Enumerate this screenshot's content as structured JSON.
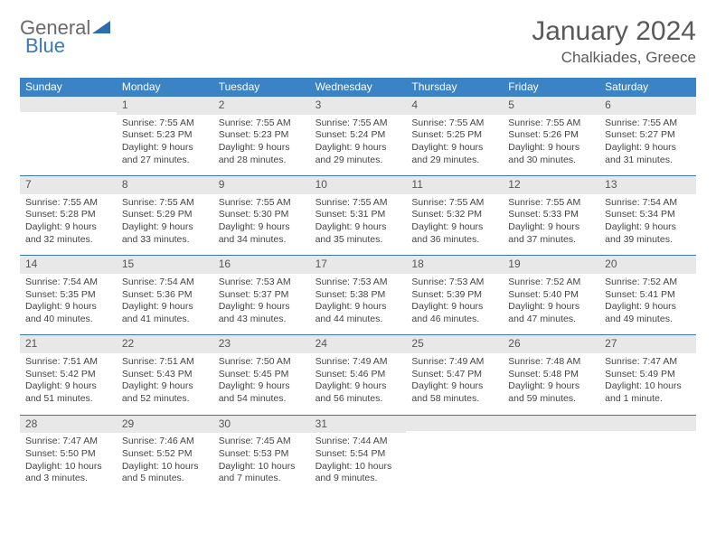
{
  "logo": {
    "text1": "General",
    "text2": "Blue"
  },
  "title": "January 2024",
  "location": "Chalkiades, Greece",
  "day_headers": [
    "Sunday",
    "Monday",
    "Tuesday",
    "Wednesday",
    "Thursday",
    "Friday",
    "Saturday"
  ],
  "colors": {
    "header_bg": "#3a83c4",
    "daynum_bg": "#e8e8e8",
    "daynum_border": "#3a7ab8",
    "text": "#444444"
  },
  "weeks": [
    [
      {
        "num": "",
        "sunrise": "",
        "sunset": "",
        "daylight": ""
      },
      {
        "num": "1",
        "sunrise": "Sunrise: 7:55 AM",
        "sunset": "Sunset: 5:23 PM",
        "daylight": "Daylight: 9 hours and 27 minutes."
      },
      {
        "num": "2",
        "sunrise": "Sunrise: 7:55 AM",
        "sunset": "Sunset: 5:23 PM",
        "daylight": "Daylight: 9 hours and 28 minutes."
      },
      {
        "num": "3",
        "sunrise": "Sunrise: 7:55 AM",
        "sunset": "Sunset: 5:24 PM",
        "daylight": "Daylight: 9 hours and 29 minutes."
      },
      {
        "num": "4",
        "sunrise": "Sunrise: 7:55 AM",
        "sunset": "Sunset: 5:25 PM",
        "daylight": "Daylight: 9 hours and 29 minutes."
      },
      {
        "num": "5",
        "sunrise": "Sunrise: 7:55 AM",
        "sunset": "Sunset: 5:26 PM",
        "daylight": "Daylight: 9 hours and 30 minutes."
      },
      {
        "num": "6",
        "sunrise": "Sunrise: 7:55 AM",
        "sunset": "Sunset: 5:27 PM",
        "daylight": "Daylight: 9 hours and 31 minutes."
      }
    ],
    [
      {
        "num": "7",
        "sunrise": "Sunrise: 7:55 AM",
        "sunset": "Sunset: 5:28 PM",
        "daylight": "Daylight: 9 hours and 32 minutes."
      },
      {
        "num": "8",
        "sunrise": "Sunrise: 7:55 AM",
        "sunset": "Sunset: 5:29 PM",
        "daylight": "Daylight: 9 hours and 33 minutes."
      },
      {
        "num": "9",
        "sunrise": "Sunrise: 7:55 AM",
        "sunset": "Sunset: 5:30 PM",
        "daylight": "Daylight: 9 hours and 34 minutes."
      },
      {
        "num": "10",
        "sunrise": "Sunrise: 7:55 AM",
        "sunset": "Sunset: 5:31 PM",
        "daylight": "Daylight: 9 hours and 35 minutes."
      },
      {
        "num": "11",
        "sunrise": "Sunrise: 7:55 AM",
        "sunset": "Sunset: 5:32 PM",
        "daylight": "Daylight: 9 hours and 36 minutes."
      },
      {
        "num": "12",
        "sunrise": "Sunrise: 7:55 AM",
        "sunset": "Sunset: 5:33 PM",
        "daylight": "Daylight: 9 hours and 37 minutes."
      },
      {
        "num": "13",
        "sunrise": "Sunrise: 7:54 AM",
        "sunset": "Sunset: 5:34 PM",
        "daylight": "Daylight: 9 hours and 39 minutes."
      }
    ],
    [
      {
        "num": "14",
        "sunrise": "Sunrise: 7:54 AM",
        "sunset": "Sunset: 5:35 PM",
        "daylight": "Daylight: 9 hours and 40 minutes."
      },
      {
        "num": "15",
        "sunrise": "Sunrise: 7:54 AM",
        "sunset": "Sunset: 5:36 PM",
        "daylight": "Daylight: 9 hours and 41 minutes."
      },
      {
        "num": "16",
        "sunrise": "Sunrise: 7:53 AM",
        "sunset": "Sunset: 5:37 PM",
        "daylight": "Daylight: 9 hours and 43 minutes."
      },
      {
        "num": "17",
        "sunrise": "Sunrise: 7:53 AM",
        "sunset": "Sunset: 5:38 PM",
        "daylight": "Daylight: 9 hours and 44 minutes."
      },
      {
        "num": "18",
        "sunrise": "Sunrise: 7:53 AM",
        "sunset": "Sunset: 5:39 PM",
        "daylight": "Daylight: 9 hours and 46 minutes."
      },
      {
        "num": "19",
        "sunrise": "Sunrise: 7:52 AM",
        "sunset": "Sunset: 5:40 PM",
        "daylight": "Daylight: 9 hours and 47 minutes."
      },
      {
        "num": "20",
        "sunrise": "Sunrise: 7:52 AM",
        "sunset": "Sunset: 5:41 PM",
        "daylight": "Daylight: 9 hours and 49 minutes."
      }
    ],
    [
      {
        "num": "21",
        "sunrise": "Sunrise: 7:51 AM",
        "sunset": "Sunset: 5:42 PM",
        "daylight": "Daylight: 9 hours and 51 minutes."
      },
      {
        "num": "22",
        "sunrise": "Sunrise: 7:51 AM",
        "sunset": "Sunset: 5:43 PM",
        "daylight": "Daylight: 9 hours and 52 minutes."
      },
      {
        "num": "23",
        "sunrise": "Sunrise: 7:50 AM",
        "sunset": "Sunset: 5:45 PM",
        "daylight": "Daylight: 9 hours and 54 minutes."
      },
      {
        "num": "24",
        "sunrise": "Sunrise: 7:49 AM",
        "sunset": "Sunset: 5:46 PM",
        "daylight": "Daylight: 9 hours and 56 minutes."
      },
      {
        "num": "25",
        "sunrise": "Sunrise: 7:49 AM",
        "sunset": "Sunset: 5:47 PM",
        "daylight": "Daylight: 9 hours and 58 minutes."
      },
      {
        "num": "26",
        "sunrise": "Sunrise: 7:48 AM",
        "sunset": "Sunset: 5:48 PM",
        "daylight": "Daylight: 9 hours and 59 minutes."
      },
      {
        "num": "27",
        "sunrise": "Sunrise: 7:47 AM",
        "sunset": "Sunset: 5:49 PM",
        "daylight": "Daylight: 10 hours and 1 minute."
      }
    ],
    [
      {
        "num": "28",
        "sunrise": "Sunrise: 7:47 AM",
        "sunset": "Sunset: 5:50 PM",
        "daylight": "Daylight: 10 hours and 3 minutes."
      },
      {
        "num": "29",
        "sunrise": "Sunrise: 7:46 AM",
        "sunset": "Sunset: 5:52 PM",
        "daylight": "Daylight: 10 hours and 5 minutes."
      },
      {
        "num": "30",
        "sunrise": "Sunrise: 7:45 AM",
        "sunset": "Sunset: 5:53 PM",
        "daylight": "Daylight: 10 hours and 7 minutes."
      },
      {
        "num": "31",
        "sunrise": "Sunrise: 7:44 AM",
        "sunset": "Sunset: 5:54 PM",
        "daylight": "Daylight: 10 hours and 9 minutes."
      },
      {
        "num": "",
        "sunrise": "",
        "sunset": "",
        "daylight": ""
      },
      {
        "num": "",
        "sunrise": "",
        "sunset": "",
        "daylight": ""
      },
      {
        "num": "",
        "sunrise": "",
        "sunset": "",
        "daylight": ""
      }
    ]
  ]
}
